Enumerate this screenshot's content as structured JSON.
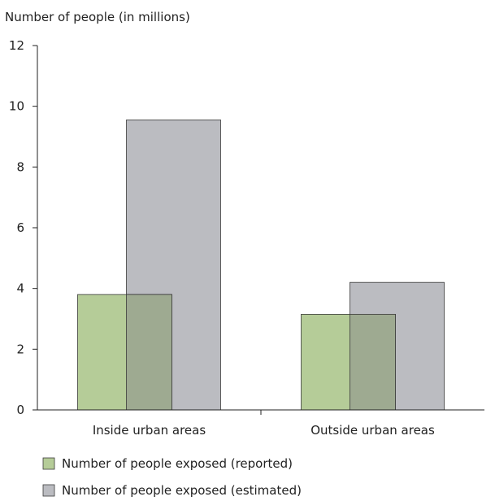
{
  "chart_data": {
    "type": "bar",
    "ylabel": "Number of people (in millions)",
    "categories": [
      "Inside urban areas",
      "Outside urban areas"
    ],
    "ylim": [
      0,
      12
    ],
    "yticks": [
      0,
      2,
      4,
      6,
      8,
      10,
      12
    ],
    "grid": false,
    "legend_position": "bottom",
    "series": [
      {
        "name": "Number of people exposed (reported)",
        "values": [
          3.8,
          3.15
        ],
        "color": "#b5cc98"
      },
      {
        "name": "Number of people exposed (estimated)",
        "values": [
          9.55,
          4.2
        ],
        "color": "#bbbcc1"
      }
    ],
    "overlap_color": "#9eaa91"
  }
}
